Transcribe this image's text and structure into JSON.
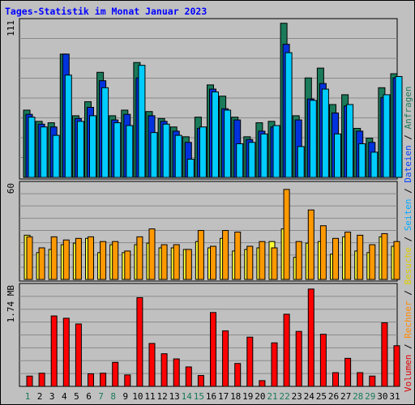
{
  "title": "Tages-Statistik im Monat Januar 2023",
  "chart_data": {
    "type": "bar",
    "title": "Tages-Statistik im Monat Januar 2023",
    "categories": [
      "1",
      "2",
      "3",
      "4",
      "5",
      "6",
      "7",
      "8",
      "9",
      "10",
      "11",
      "12",
      "13",
      "14",
      "15",
      "16",
      "17",
      "18",
      "19",
      "20",
      "21",
      "22",
      "23",
      "24",
      "25",
      "26",
      "27",
      "28",
      "29",
      "30",
      "31"
    ],
    "weekend_days": [
      "1",
      "7",
      "8",
      "14",
      "15",
      "21",
      "22",
      "28",
      "29"
    ],
    "panels": [
      {
        "id": "requests",
        "max_label": "111",
        "max": 111,
        "series": [
          {
            "name": "Anfragen",
            "color": "#1a7a5a",
            "values": [
              48,
              40,
              39,
              88,
              44,
              54,
              75,
              44,
              48,
              82,
              47,
              42,
              36,
              29,
              43,
              66,
              58,
              43,
              29,
              39,
              40,
              110,
              44,
              71,
              78,
              52,
              59,
              35,
              28,
              64,
              74
            ]
          },
          {
            "name": "Dateien",
            "color": "#0033dd",
            "values": [
              45,
              38,
              36,
              88,
              42,
              50,
              69,
              41,
              45,
              71,
              44,
              40,
              33,
              25,
              35,
              63,
              49,
              41,
              27,
              33,
              36,
              95,
              41,
              56,
              67,
              46,
              51,
              33,
              25,
              57,
              71
            ]
          },
          {
            "name": "Seiten",
            "color": "#00ccff",
            "values": [
              43,
              36,
              30,
              73,
              40,
              44,
              64,
              39,
              37,
              80,
              32,
              38,
              30,
              13,
              36,
              61,
              48,
              24,
              25,
              31,
              37,
              89,
              22,
              55,
              63,
              31,
              52,
              24,
              18,
              59,
              72
            ]
          }
        ]
      },
      {
        "id": "visits",
        "max_label": "60",
        "max": 60,
        "series": [
          {
            "name": "Besuche",
            "color": "#ffff33",
            "values": [
              28,
              17,
              19,
              22,
              23,
              26,
              17,
              22,
              17,
              22,
              23,
              20,
              20,
              19,
              24,
              20,
              26,
              18,
              19,
              20,
              24,
              32,
              14,
              23,
              24,
              16,
              27,
              18,
              17,
              27,
              21
            ]
          },
          {
            "name": "Rechner",
            "color": "#ff9900",
            "values": [
              27,
              20,
              27,
              25,
              26,
              27,
              24,
              24,
              18,
              27,
              32,
              22,
              22,
              19,
              31,
              21,
              31,
              30,
              21,
              24,
              20,
              57,
              24,
              44,
              34,
              26,
              30,
              28,
              22,
              29,
              24
            ]
          }
        ]
      },
      {
        "id": "volume",
        "max_label": "1.74 MB",
        "max": 1.74,
        "series": [
          {
            "name": "Volumen",
            "color": "#ff0000",
            "values": [
              0.18,
              0.23,
              1.23,
              1.19,
              1.09,
              0.22,
              0.23,
              0.42,
              0.2,
              1.55,
              0.75,
              0.57,
              0.48,
              0.34,
              0.19,
              1.29,
              0.97,
              0.4,
              0.86,
              0.1,
              0.76,
              1.26,
              0.96,
              1.7,
              0.91,
              0.24,
              0.49,
              0.24,
              0.18,
              1.11,
              0.71
            ]
          }
        ]
      }
    ],
    "legend_text": "Volumen / Rechner / Besuche / Seiten / Dateien / Anfragen",
    "legend_colors": [
      "#dd0000",
      "#ff8800",
      "#ddcc00",
      "#00aaff",
      "#0044ff",
      "#1a7a5a"
    ],
    "legend_placement": "right-vertical",
    "grid": true
  }
}
